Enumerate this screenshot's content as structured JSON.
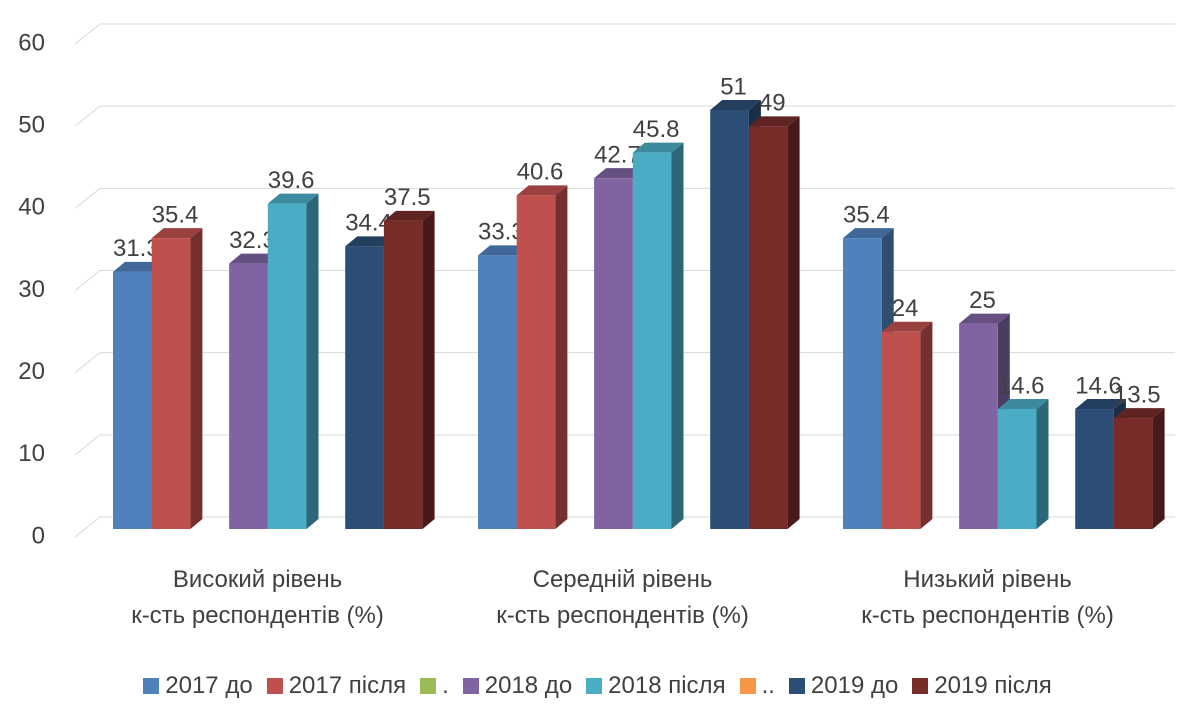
{
  "chart_data": {
    "type": "bar3d",
    "categories": [
      "Високий рівень\nк-сть респондентів (%)",
      "Середній рівень\nк-сть респондентів (%)",
      "Низький рівень\nк-сть респондентів (%)"
    ],
    "series": [
      {
        "name": "2017 до",
        "color": "#4f81bd",
        "values": [
          31.3,
          33.3,
          35.4
        ]
      },
      {
        "name": "2017 після",
        "color": "#c0504d",
        "values": [
          35.4,
          40.6,
          24
        ]
      },
      {
        "name": ".",
        "color": "#9bbb59",
        "values": [
          null,
          null,
          null
        ]
      },
      {
        "name": "2018 до",
        "color": "#8064a2",
        "values": [
          32.3,
          42.7,
          25
        ]
      },
      {
        "name": "2018 після",
        "color": "#4bacc6",
        "values": [
          39.6,
          45.8,
          14.6
        ]
      },
      {
        "name": "..",
        "color": "#f79646",
        "values": [
          null,
          null,
          null
        ]
      },
      {
        "name": "2019 до",
        "color": "#2c4d75",
        "values": [
          34.4,
          51,
          14.6
        ]
      },
      {
        "name": "2019 після",
        "color": "#772c2a",
        "values": [
          37.5,
          49,
          13.5
        ]
      }
    ],
    "ylim": [
      0,
      60
    ],
    "yticks": [
      0,
      10,
      20,
      30,
      40,
      50,
      60
    ],
    "grid": true,
    "legend": "bottom"
  }
}
